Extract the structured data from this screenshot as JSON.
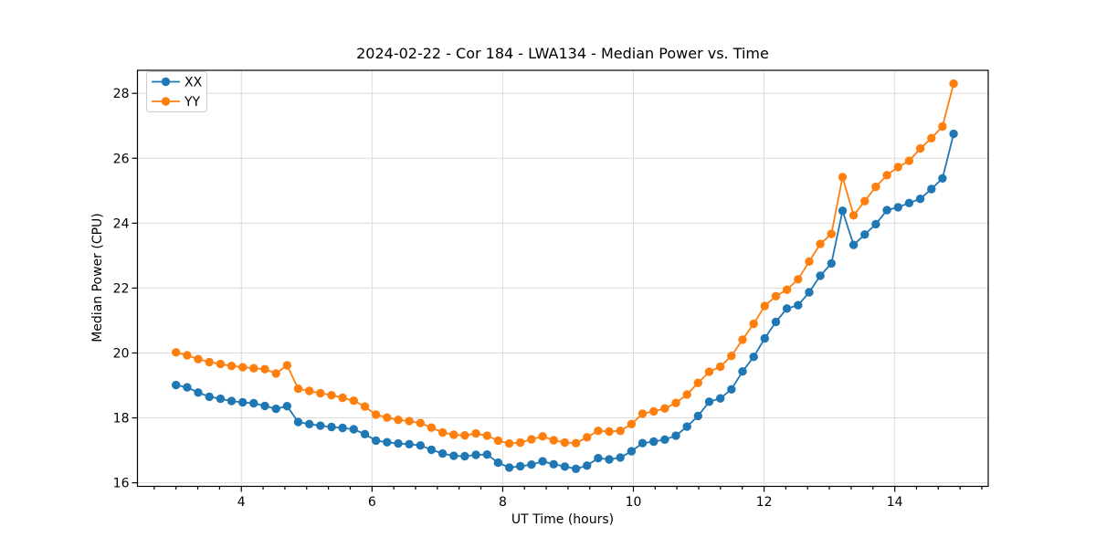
{
  "figure": {
    "title": "2024-02-22 - Cor 184 - LWA134 - Median Power vs. Time",
    "xlabel": "UT Time (hours)",
    "ylabel": "Median Power (CPU)"
  },
  "chart_data": {
    "type": "line",
    "title": "2024-02-22 - Cor 184 - LWA134 - Median Power vs. Time",
    "xlabel": "UT Time (hours)",
    "ylabel": "Median Power (CPU)",
    "xlim": [
      2.41,
      15.43
    ],
    "ylim": [
      15.89,
      28.71
    ],
    "x_ticks": [
      4,
      6,
      8,
      10,
      12,
      14
    ],
    "y_ticks": [
      16,
      18,
      20,
      22,
      24,
      26,
      28
    ],
    "x_minor_tick_step": 0.3333,
    "grid": "major-both",
    "grid_color": "#dcdcdc",
    "background_color": "#ffffff",
    "legend_position": "upper-left",
    "marker": "circle",
    "x": [
      3.0,
      3.17,
      3.34,
      3.51,
      3.68,
      3.85,
      4.02,
      4.19,
      4.36,
      4.53,
      4.7,
      4.87,
      5.04,
      5.21,
      5.38,
      5.55,
      5.72,
      5.89,
      6.06,
      6.23,
      6.4,
      6.57,
      6.74,
      6.91,
      7.08,
      7.25,
      7.42,
      7.59,
      7.76,
      7.93,
      8.1,
      8.27,
      8.44,
      8.61,
      8.78,
      8.95,
      9.12,
      9.29,
      9.46,
      9.63,
      9.8,
      9.97,
      10.14,
      10.31,
      10.48,
      10.65,
      10.82,
      10.99,
      11.16,
      11.33,
      11.5,
      11.67,
      11.84,
      12.01,
      12.18,
      12.35,
      12.52,
      12.69,
      12.86,
      13.03,
      13.2,
      13.37,
      13.54,
      13.71,
      13.88,
      14.05,
      14.22,
      14.39,
      14.56,
      14.73,
      14.9
    ],
    "series": [
      {
        "name": "XX",
        "color": "#1f77b4",
        "values": [
          19.01,
          18.94,
          18.78,
          18.65,
          18.59,
          18.52,
          18.48,
          18.45,
          18.37,
          18.28,
          18.36,
          17.87,
          17.81,
          17.76,
          17.72,
          17.69,
          17.65,
          17.5,
          17.3,
          17.25,
          17.21,
          17.19,
          17.15,
          17.02,
          16.9,
          16.83,
          16.82,
          16.86,
          16.87,
          16.62,
          16.47,
          16.51,
          16.56,
          16.66,
          16.57,
          16.5,
          16.43,
          16.53,
          16.76,
          16.72,
          16.78,
          16.97,
          17.22,
          17.27,
          17.33,
          17.45,
          17.73,
          18.06,
          18.5,
          18.6,
          18.88,
          19.43,
          19.88,
          20.45,
          20.96,
          21.37,
          21.47,
          21.87,
          22.38,
          22.76,
          24.38,
          23.33,
          23.65,
          23.97,
          24.4,
          24.49,
          24.62,
          24.75,
          25.05,
          25.38,
          26.75
        ]
      },
      {
        "name": "YY",
        "color": "#ff7f0e",
        "values": [
          20.02,
          19.93,
          19.81,
          19.72,
          19.66,
          19.6,
          19.56,
          19.53,
          19.5,
          19.37,
          19.62,
          18.9,
          18.83,
          18.76,
          18.7,
          18.62,
          18.53,
          18.35,
          18.1,
          18.01,
          17.94,
          17.9,
          17.84,
          17.7,
          17.55,
          17.48,
          17.46,
          17.52,
          17.45,
          17.3,
          17.21,
          17.24,
          17.34,
          17.43,
          17.31,
          17.24,
          17.22,
          17.4,
          17.6,
          17.58,
          17.6,
          17.81,
          18.13,
          18.2,
          18.29,
          18.46,
          18.72,
          19.08,
          19.42,
          19.58,
          19.91,
          20.41,
          20.9,
          21.45,
          21.75,
          21.95,
          22.27,
          22.82,
          23.36,
          23.67,
          25.42,
          24.24,
          24.68,
          25.12,
          25.48,
          25.73,
          25.92,
          26.3,
          26.62,
          26.98,
          28.3
        ]
      }
    ]
  }
}
